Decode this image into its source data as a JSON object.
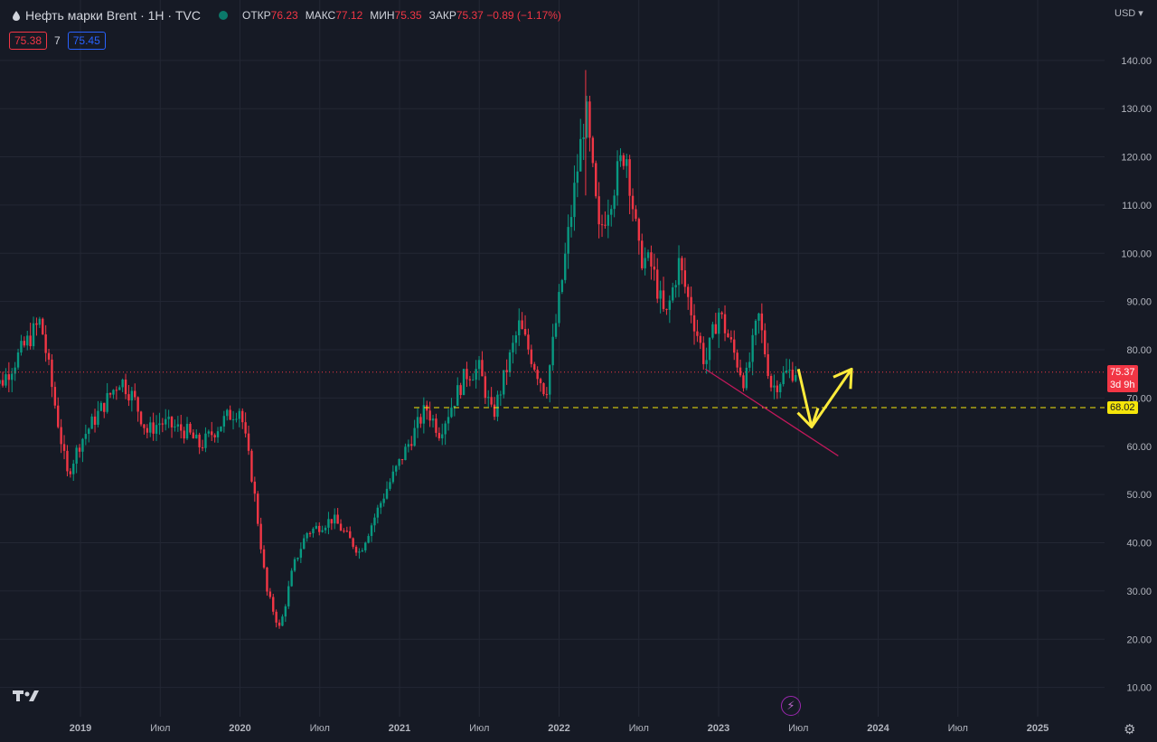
{
  "header": {
    "symbol": "Нефть марки Brent · 1Н · TVC",
    "ohlc": [
      {
        "label": "ОТКР",
        "value": "76.23"
      },
      {
        "label": "МАКС",
        "value": "77.12"
      },
      {
        "label": "МИН",
        "value": "75.35"
      },
      {
        "label": "ЗАКР",
        "value": "75.37 −0.89 (−1.17%)"
      }
    ],
    "bid": "75.38",
    "spread": "7",
    "ask": "75.45"
  },
  "price_axis": {
    "currency": "USD",
    "current_price": "75.37",
    "countdown": "3d 9h",
    "level_price": "68.02"
  },
  "chart_data": {
    "type": "candlestick",
    "y_ticks": [
      "140.00",
      "130.00",
      "120.00",
      "110.00",
      "100.00",
      "90.00",
      "80.00",
      "70.00",
      "60.00",
      "50.00",
      "40.00",
      "30.00",
      "20.00",
      "10.00"
    ],
    "x_ticks": [
      "2019",
      "Июл",
      "2020",
      "Июл",
      "2021",
      "Июл",
      "2022",
      "Июл",
      "2023",
      "Июл",
      "2024",
      "Июл",
      "2025"
    ],
    "ylim": [
      0,
      152
    ],
    "close_path": [
      [
        "2018-06",
        74
      ],
      [
        "2018-07",
        73
      ],
      [
        "2018-10",
        86
      ],
      [
        "2018-12",
        54
      ],
      [
        "2019-01",
        61
      ],
      [
        "2019-04",
        74
      ],
      [
        "2019-05",
        70
      ],
      [
        "2019-06",
        63
      ],
      [
        "2019-07",
        65
      ],
      [
        "2019-09",
        63
      ],
      [
        "2019-10",
        60
      ],
      [
        "2019-12",
        66
      ],
      [
        "2020-01",
        68
      ],
      [
        "2020-02",
        52
      ],
      [
        "2020-03",
        30
      ],
      [
        "2020-04",
        22
      ],
      [
        "2020-05",
        35
      ],
      [
        "2020-06",
        42
      ],
      [
        "2020-08",
        45
      ],
      [
        "2020-10",
        38
      ],
      [
        "2020-12",
        51
      ],
      [
        "2021-03",
        68
      ],
      [
        "2021-04",
        63
      ],
      [
        "2021-06",
        75
      ],
      [
        "2021-07",
        76
      ],
      [
        "2021-08",
        66
      ],
      [
        "2021-10",
        85
      ],
      [
        "2021-12",
        71
      ],
      [
        "2022-01",
        90
      ],
      [
        "2022-03",
        130
      ],
      [
        "2022-04",
        104
      ],
      [
        "2022-06",
        122
      ],
      [
        "2022-07",
        100
      ],
      [
        "2022-08",
        97
      ],
      [
        "2022-09",
        86
      ],
      [
        "2022-10",
        98
      ],
      [
        "2022-12",
        77
      ],
      [
        "2023-01",
        88
      ],
      [
        "2023-03",
        73
      ],
      [
        "2023-04",
        87
      ],
      [
        "2023-05",
        72
      ],
      [
        "2023-06",
        75
      ],
      [
        "2023-07",
        76
      ]
    ],
    "horizontal_lines": [
      {
        "price": 75.37,
        "style": "dotted",
        "color": "#f23645"
      },
      {
        "price": 68.02,
        "style": "dashed",
        "color": "#f5e50a"
      }
    ],
    "trend_line": {
      "from": [
        "2022-12",
        76
      ],
      "to": [
        "2023-10",
        58
      ],
      "color": "#c2185b"
    },
    "arrows": {
      "color": "#ffeb3b",
      "path": [
        [
          "2023-07",
          76
        ],
        [
          "2023-08",
          64
        ],
        [
          "2023-11",
          76
        ]
      ]
    }
  }
}
